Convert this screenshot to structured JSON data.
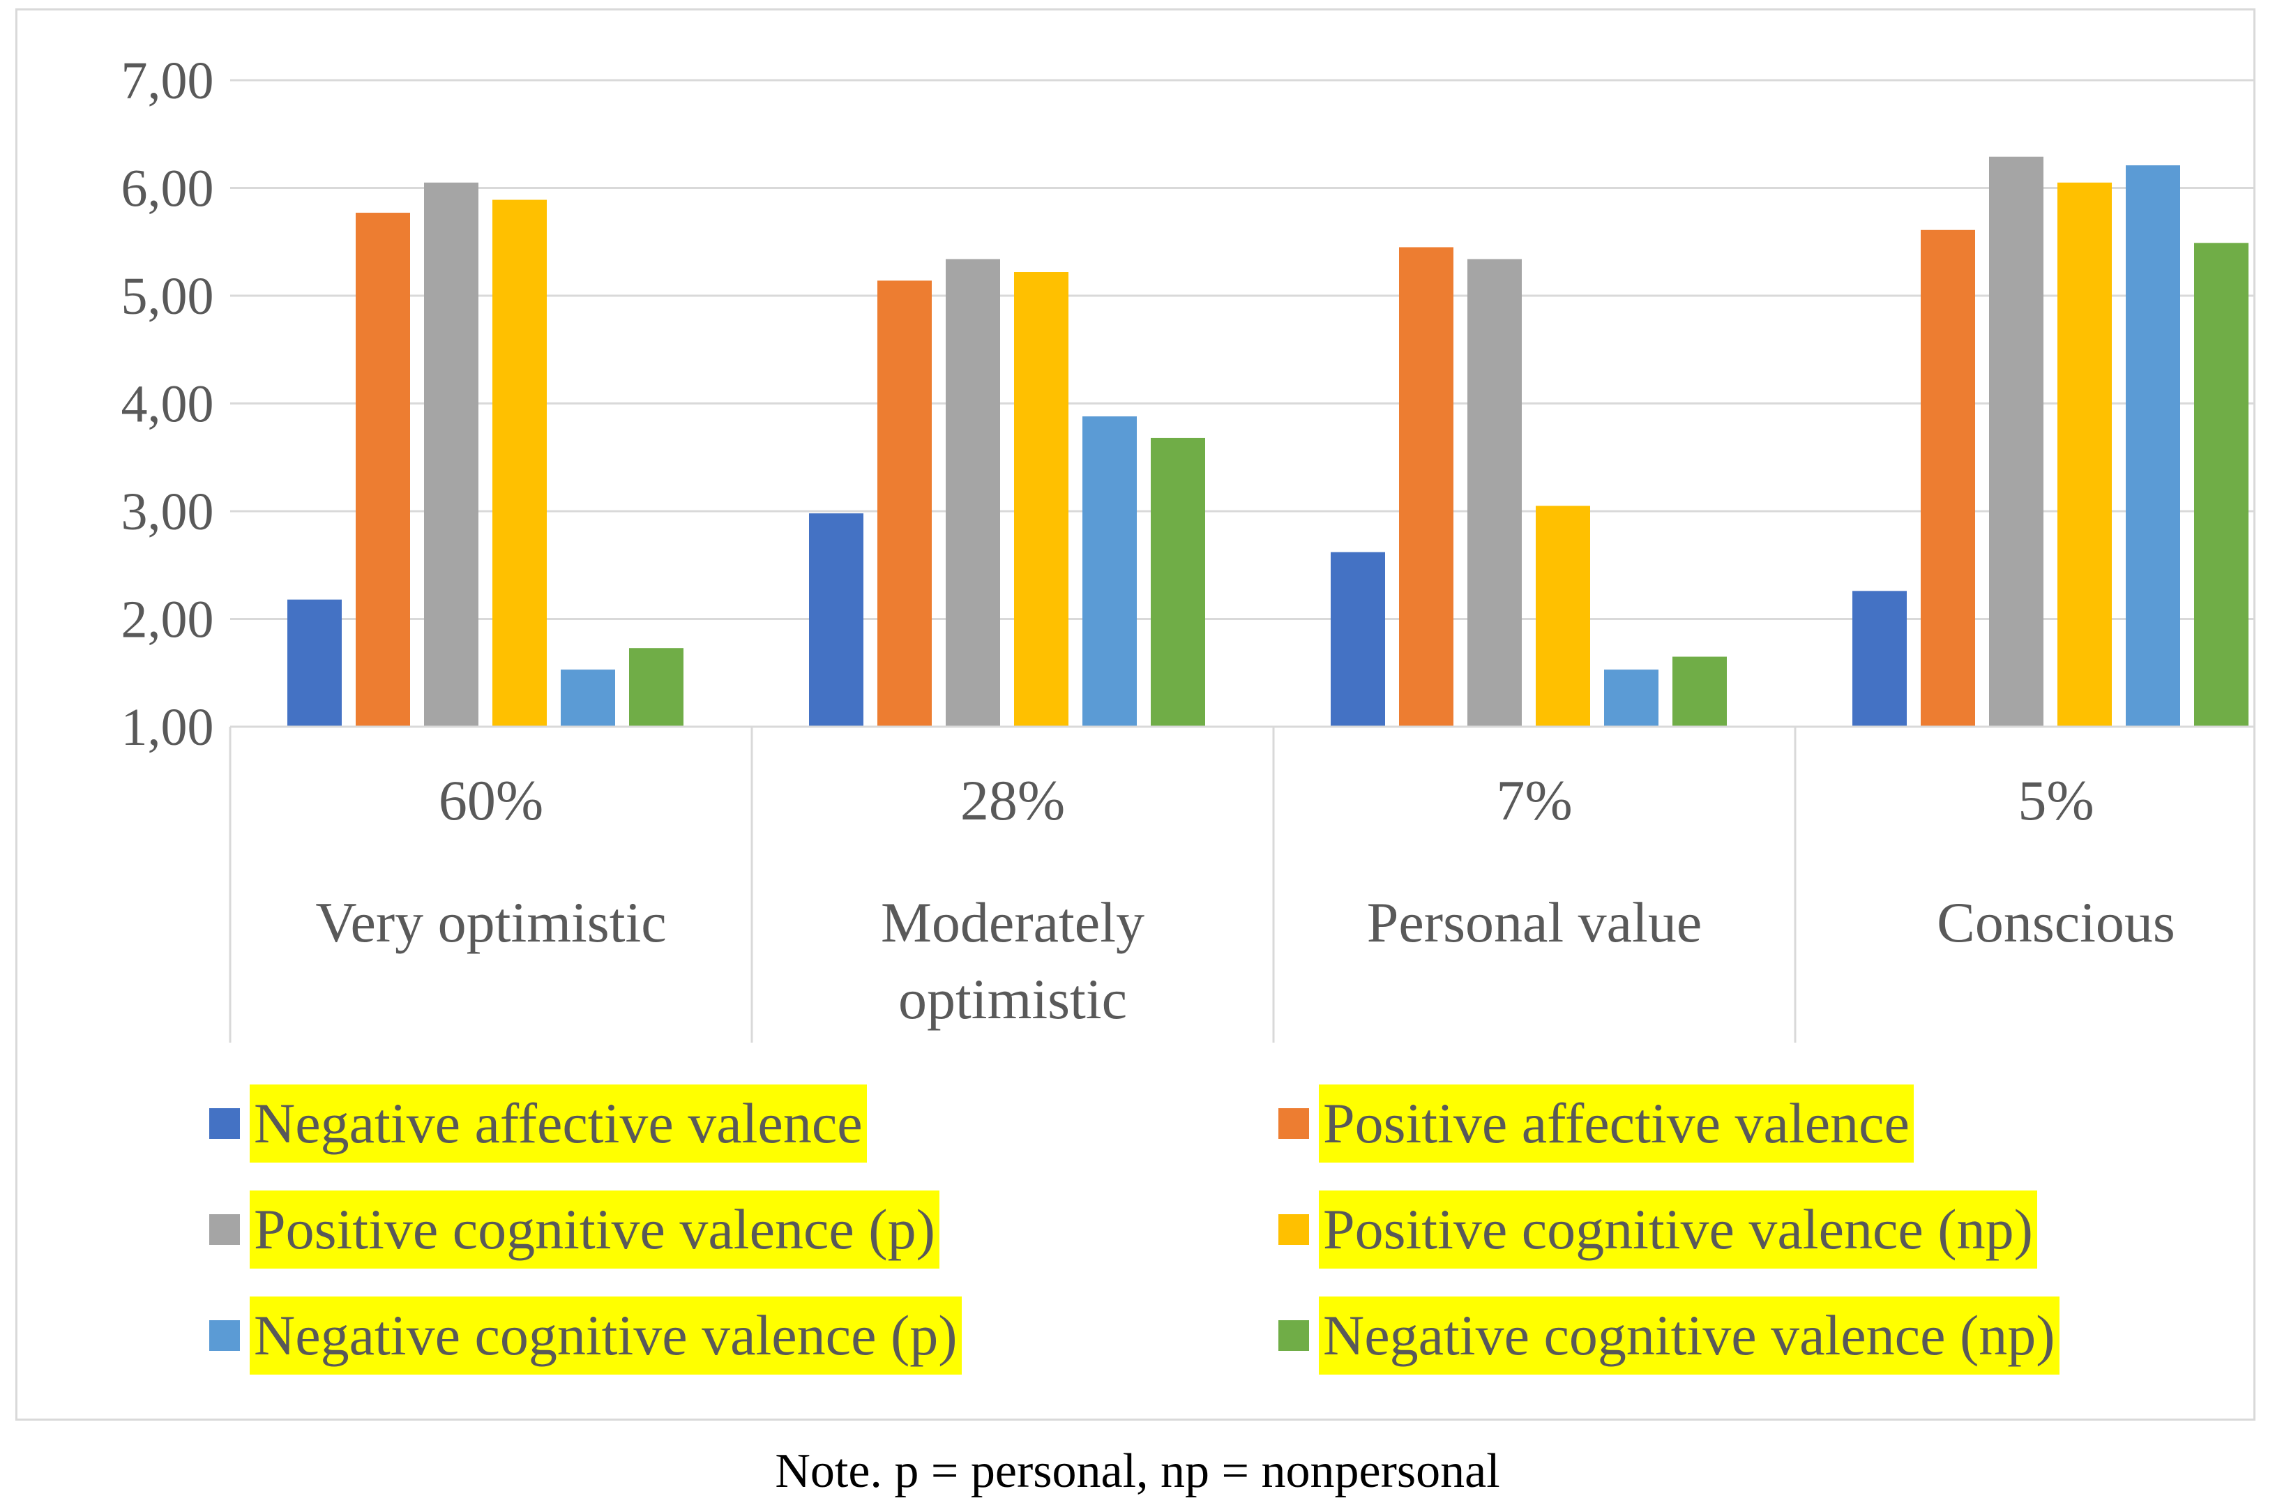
{
  "chart_data": {
    "type": "bar",
    "categories": [
      {
        "pct": "60%",
        "label": [
          "Very optimistic"
        ]
      },
      {
        "pct": "28%",
        "label": [
          "Moderately",
          "optimistic"
        ]
      },
      {
        "pct": "7%",
        "label": [
          "Personal value"
        ]
      },
      {
        "pct": "5%",
        "label": [
          "Conscious"
        ]
      }
    ],
    "series": [
      {
        "name": "Negative affective valence",
        "color": "#4472c4",
        "values": [
          2.18,
          2.98,
          2.62,
          2.26
        ]
      },
      {
        "name": "Positive affective valence",
        "color": "#ed7d31",
        "values": [
          5.77,
          5.14,
          5.45,
          5.61
        ]
      },
      {
        "name": "Positive cognitive valence (p)",
        "color": "#a5a5a5",
        "values": [
          6.05,
          5.34,
          5.34,
          6.29
        ]
      },
      {
        "name": "Positive cognitive valence (np)",
        "color": "#ffc000",
        "values": [
          5.89,
          5.22,
          3.05,
          6.05
        ]
      },
      {
        "name": "Negative cognitive valence (p)",
        "color": "#5b9bd5",
        "values": [
          1.53,
          3.88,
          1.53,
          6.21
        ]
      },
      {
        "name": "Negative cognitive valence (np)",
        "color": "#70ad47",
        "values": [
          1.73,
          3.68,
          1.65,
          5.49
        ]
      }
    ],
    "ylim": [
      1,
      7
    ],
    "yticks": [
      "1,00",
      "2,00",
      "3,00",
      "4,00",
      "5,00",
      "6,00",
      "7,00"
    ],
    "grid": true,
    "legend": "bottom"
  },
  "note": "Note. p = personal, np = nonpersonal"
}
